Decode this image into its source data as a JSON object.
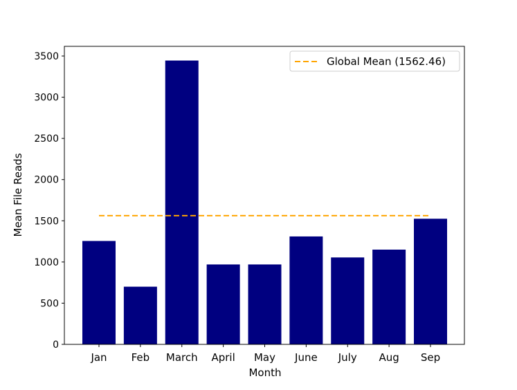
{
  "chart_data": {
    "type": "bar",
    "title": "",
    "xlabel": "Month",
    "ylabel": "Mean File Reads",
    "categories": [
      "Jan",
      "Feb",
      "March",
      "April",
      "May",
      "June",
      "July",
      "Aug",
      "Sep"
    ],
    "values": [
      1255,
      700,
      3445,
      970,
      970,
      1310,
      1055,
      1150,
      1525
    ],
    "ylim": [
      0,
      3500
    ],
    "yticks": [
      0,
      500,
      1000,
      1500,
      2000,
      2500,
      3000,
      3500
    ],
    "bar_color": "#000080",
    "reference_line": {
      "label": "Global Mean (1562.46)",
      "value": 1562.46,
      "color": "#FFA500",
      "style": "dashed"
    },
    "legend_position": "top-right",
    "grid": false
  }
}
